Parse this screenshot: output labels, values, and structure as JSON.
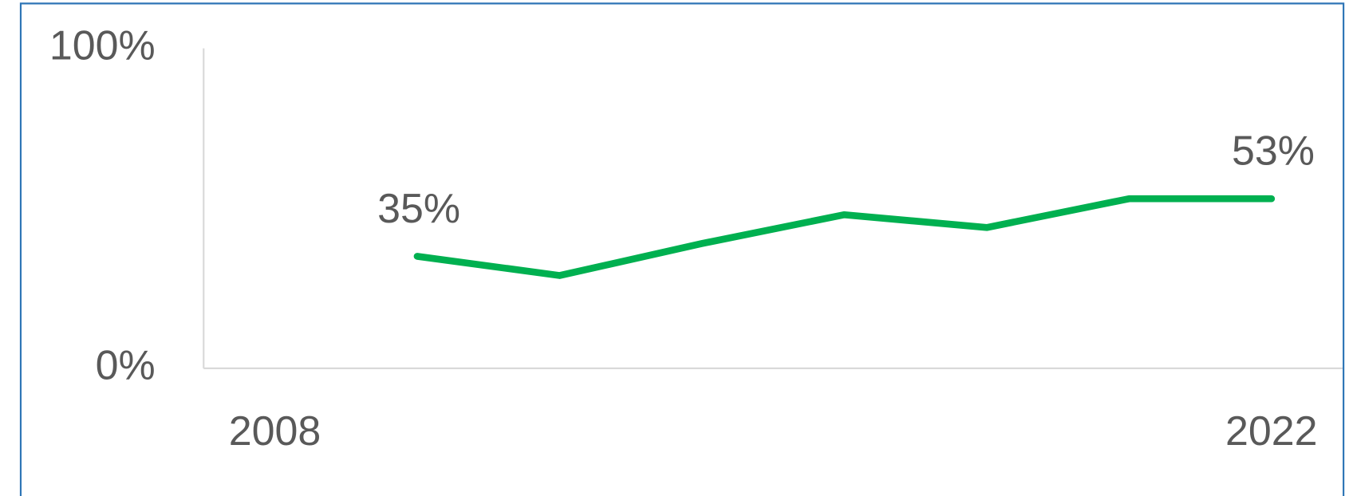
{
  "chart_data": {
    "type": "line",
    "x": [
      2010,
      2012,
      2014,
      2016,
      2018,
      2020,
      2022
    ],
    "values": [
      35,
      29,
      39,
      48,
      44,
      53,
      53
    ],
    "value_labels": [
      "35%",
      null,
      null,
      null,
      null,
      null,
      "53%"
    ],
    "color": "#00b050",
    "xlim": [
      2007,
      2023
    ],
    "xticks": [
      2008,
      2022
    ],
    "ylim": [
      0,
      100
    ],
    "yticks": [
      {
        "value": 0,
        "label": "0%"
      },
      {
        "value": 100,
        "label": "100%"
      }
    ]
  }
}
